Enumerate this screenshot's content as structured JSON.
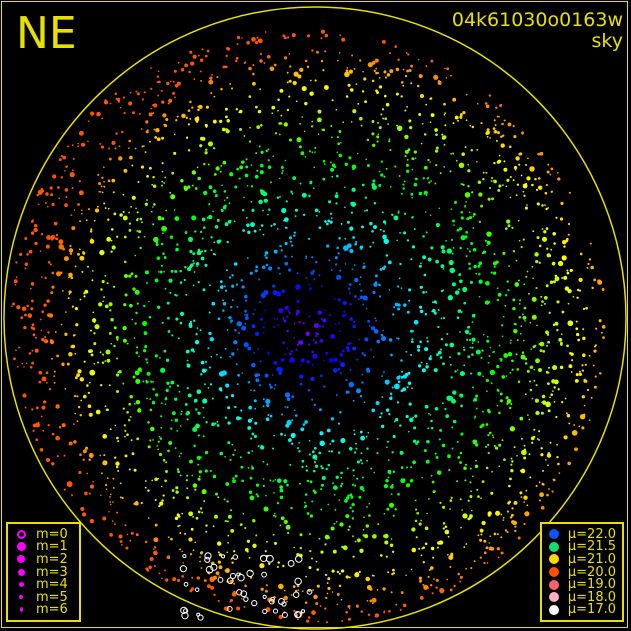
{
  "header": {
    "direction": "NE",
    "image_id": "04k61030o0163w",
    "kind": "sky"
  },
  "chart_data": {
    "type": "scatter",
    "title": "",
    "description_of_encoding": "",
    "grid": false,
    "magnitude_legend": {
      "position": "bottom-left",
      "entries": [
        {
          "label": "m=0",
          "marker": "ring"
        },
        {
          "label": "m=1",
          "marker": "dot"
        },
        {
          "label": "m=2",
          "marker": "dot"
        },
        {
          "label": "m=3",
          "marker": "dot"
        },
        {
          "label": "m=4",
          "marker": "dot"
        },
        {
          "label": "m=5",
          "marker": "dot"
        },
        {
          "label": "m=6",
          "marker": "dot"
        }
      ],
      "marker_color": "#ff00ff"
    },
    "brightness_legend": {
      "position": "bottom-right",
      "entries": [
        {
          "label": "μ=22.0",
          "color": "#1050ff"
        },
        {
          "label": "μ=21.5",
          "color": "#10e070"
        },
        {
          "label": "μ=21.0",
          "color": "#ffd800"
        },
        {
          "label": "μ=20.0",
          "color": "#ff5000"
        },
        {
          "label": "μ=19.0",
          "color": "#ff6070"
        },
        {
          "label": "μ=18.0",
          "color": "#ffb0c0"
        },
        {
          "label": "μ=17.0",
          "color": "#ffffff"
        }
      ]
    },
    "axis_color": "#e8e000"
  }
}
